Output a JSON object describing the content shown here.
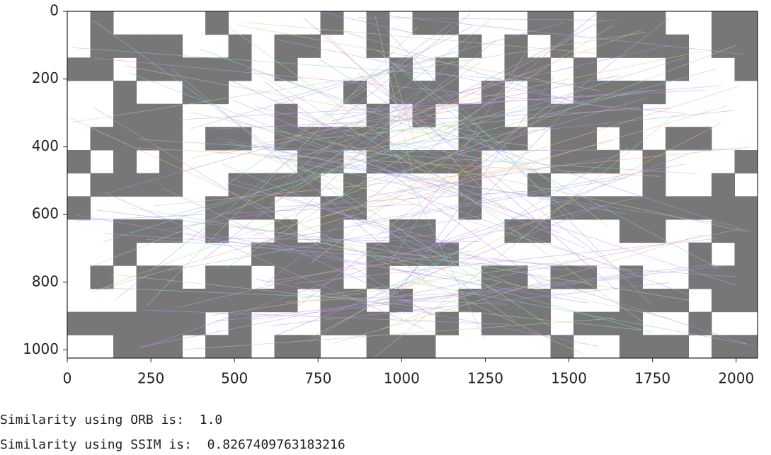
{
  "chart_data": {
    "type": "image",
    "xlim": [
      0,
      2064
    ],
    "ylim": [
      1024,
      0
    ],
    "xticks": [
      0,
      250,
      500,
      750,
      1000,
      1250,
      1500,
      1750,
      2000
    ],
    "yticks": [
      0,
      200,
      400,
      600,
      800,
      1000
    ]
  },
  "output": {
    "lines": [
      "Similarity using ORB is:  1.0",
      "Similarity using SSIM is:  0.8267409763183216"
    ]
  }
}
